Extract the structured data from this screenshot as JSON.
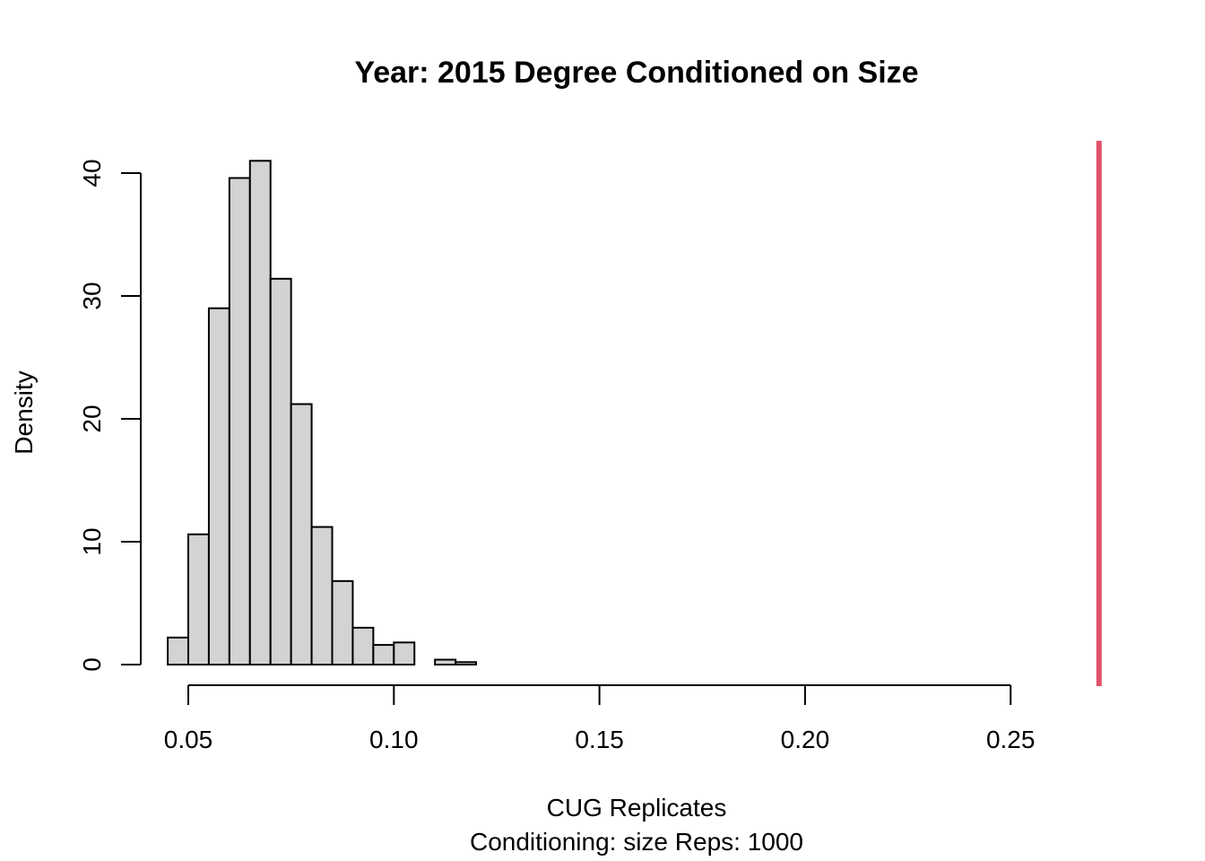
{
  "chart_data": {
    "type": "histogram",
    "title": "Year: 2015  Degree Conditioned on Size",
    "xlabel": "CUG Replicates",
    "subtitle": "Conditioning: size Reps: 1000",
    "ylabel": "Density",
    "xlim": [
      0.045,
      0.25
    ],
    "ylim": [
      0,
      41
    ],
    "x_ticks": [
      "0.05",
      "0.10",
      "0.15",
      "0.20",
      "0.25"
    ],
    "y_ticks": [
      "0",
      "10",
      "20",
      "30",
      "40"
    ],
    "bar_fill": "#d3d3d3",
    "bins": [
      {
        "x0": 0.045,
        "x1": 0.05,
        "density": 2.2
      },
      {
        "x0": 0.05,
        "x1": 0.055,
        "density": 10.6
      },
      {
        "x0": 0.055,
        "x1": 0.06,
        "density": 29.0
      },
      {
        "x0": 0.06,
        "x1": 0.065,
        "density": 39.6
      },
      {
        "x0": 0.065,
        "x1": 0.07,
        "density": 41.0
      },
      {
        "x0": 0.07,
        "x1": 0.075,
        "density": 31.4
      },
      {
        "x0": 0.075,
        "x1": 0.08,
        "density": 21.2
      },
      {
        "x0": 0.08,
        "x1": 0.085,
        "density": 11.2
      },
      {
        "x0": 0.085,
        "x1": 0.09,
        "density": 6.8
      },
      {
        "x0": 0.09,
        "x1": 0.095,
        "density": 3.0
      },
      {
        "x0": 0.095,
        "x1": 0.1,
        "density": 1.6
      },
      {
        "x0": 0.1,
        "x1": 0.105,
        "density": 1.8
      },
      {
        "x0": 0.105,
        "x1": 0.11,
        "density": 0.0
      },
      {
        "x0": 0.11,
        "x1": 0.115,
        "density": 0.4
      },
      {
        "x0": 0.115,
        "x1": 0.12,
        "density": 0.2
      }
    ],
    "observed_value": 0.2715,
    "observed_line_color": "#df536b"
  }
}
